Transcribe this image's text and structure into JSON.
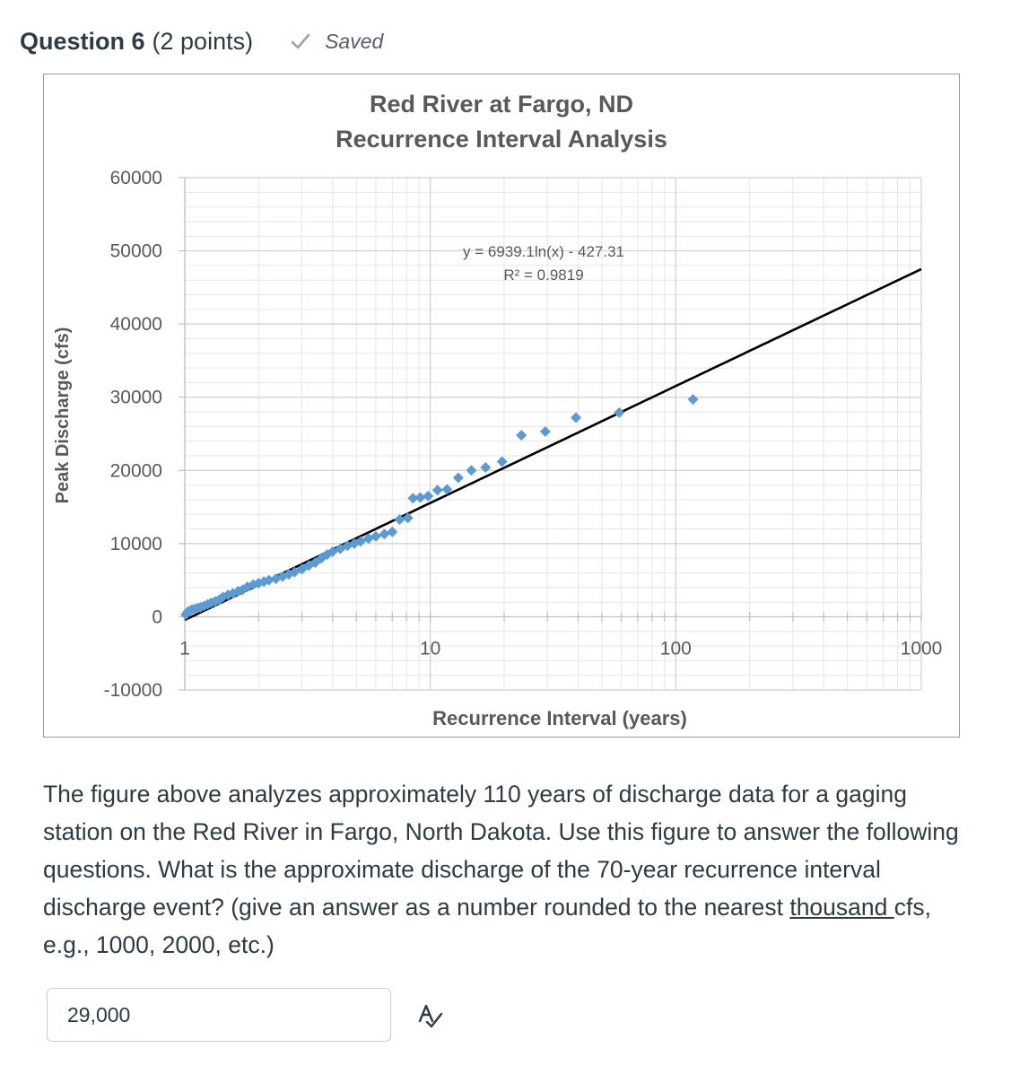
{
  "question": {
    "title": "Question 6",
    "points": "(2 points)",
    "status": "Saved",
    "status_icon": "check-icon"
  },
  "chart_data": {
    "type": "scatter",
    "title_line1": "Red River at Fargo, ND",
    "title_line2": "Recurrence Interval Analysis",
    "xlabel": "Recurrence Interval (years)",
    "ylabel": "Peak Discharge (cfs)",
    "x_scale": "log",
    "xlim": [
      1,
      1000
    ],
    "ylim": [
      -10000,
      60000
    ],
    "x_ticks": [
      "1",
      "10",
      "100",
      "1000"
    ],
    "y_ticks": [
      "60000",
      "50000",
      "40000",
      "30000",
      "20000",
      "10000",
      "0",
      "-10000"
    ],
    "y_tick_values": [
      60000,
      50000,
      40000,
      30000,
      20000,
      10000,
      0,
      -10000
    ],
    "grid": true,
    "point_color": "#5b9bd5",
    "trendline": {
      "equation": "y = 6939.1ln(x) - 427.31",
      "r_squared": "R² = 0.9819",
      "a": 6939.1,
      "b": -427.31,
      "x_range": [
        1,
        1000
      ],
      "color": "#000000"
    },
    "series": [
      {
        "points": [
          [
            1.01,
            300
          ],
          [
            1.02,
            500
          ],
          [
            1.03,
            700
          ],
          [
            1.05,
            800
          ],
          [
            1.07,
            1000
          ],
          [
            1.1,
            1100
          ],
          [
            1.13,
            1200
          ],
          [
            1.16,
            1300
          ],
          [
            1.2,
            1500
          ],
          [
            1.24,
            1700
          ],
          [
            1.28,
            1900
          ],
          [
            1.33,
            2100
          ],
          [
            1.38,
            2300
          ],
          [
            1.43,
            2700
          ],
          [
            1.5,
            3000
          ],
          [
            1.57,
            3200
          ],
          [
            1.65,
            3500
          ],
          [
            1.72,
            3700
          ],
          [
            1.8,
            4100
          ],
          [
            1.9,
            4400
          ],
          [
            2.0,
            4600
          ],
          [
            2.1,
            4800
          ],
          [
            2.2,
            5000
          ],
          [
            2.35,
            5200
          ],
          [
            2.5,
            5500
          ],
          [
            2.65,
            5800
          ],
          [
            2.8,
            6100
          ],
          [
            3.0,
            6500
          ],
          [
            3.2,
            7000
          ],
          [
            3.4,
            7400
          ],
          [
            3.6,
            8000
          ],
          [
            3.8,
            8500
          ],
          [
            4.0,
            8900
          ],
          [
            4.3,
            9300
          ],
          [
            4.6,
            9700
          ],
          [
            4.9,
            10000
          ],
          [
            5.2,
            10300
          ],
          [
            5.6,
            10700
          ],
          [
            6.0,
            11000
          ],
          [
            6.5,
            11300
          ],
          [
            7.0,
            11600
          ],
          [
            7.5,
            13300
          ],
          [
            8.1,
            13500
          ],
          [
            8.5,
            16200
          ],
          [
            9.1,
            16300
          ],
          [
            9.8,
            16500
          ],
          [
            10.7,
            17300
          ],
          [
            11.7,
            17400
          ],
          [
            13.0,
            19000
          ],
          [
            14.7,
            20000
          ],
          [
            16.8,
            20400
          ],
          [
            19.6,
            21200
          ],
          [
            23.5,
            24800
          ],
          [
            29.4,
            25300
          ],
          [
            39.2,
            27200
          ],
          [
            58.8,
            27900
          ],
          [
            117.5,
            29700
          ]
        ]
      }
    ]
  },
  "question_text": {
    "part1": "The figure above analyzes approximately 110 years of discharge data for a gaging station on the Red River in Fargo, North Dakota.   Use this figure to answer the following questions. What is the approximate discharge of the 70-year recurrence interval discharge event? (give an answer as a number rounded to the nearest ",
    "underlined": "thousand ",
    "part2": "cfs, e.g., 1000, 2000, etc.)"
  },
  "answer": {
    "value": "29,000",
    "icon": "spellcheck-icon"
  }
}
